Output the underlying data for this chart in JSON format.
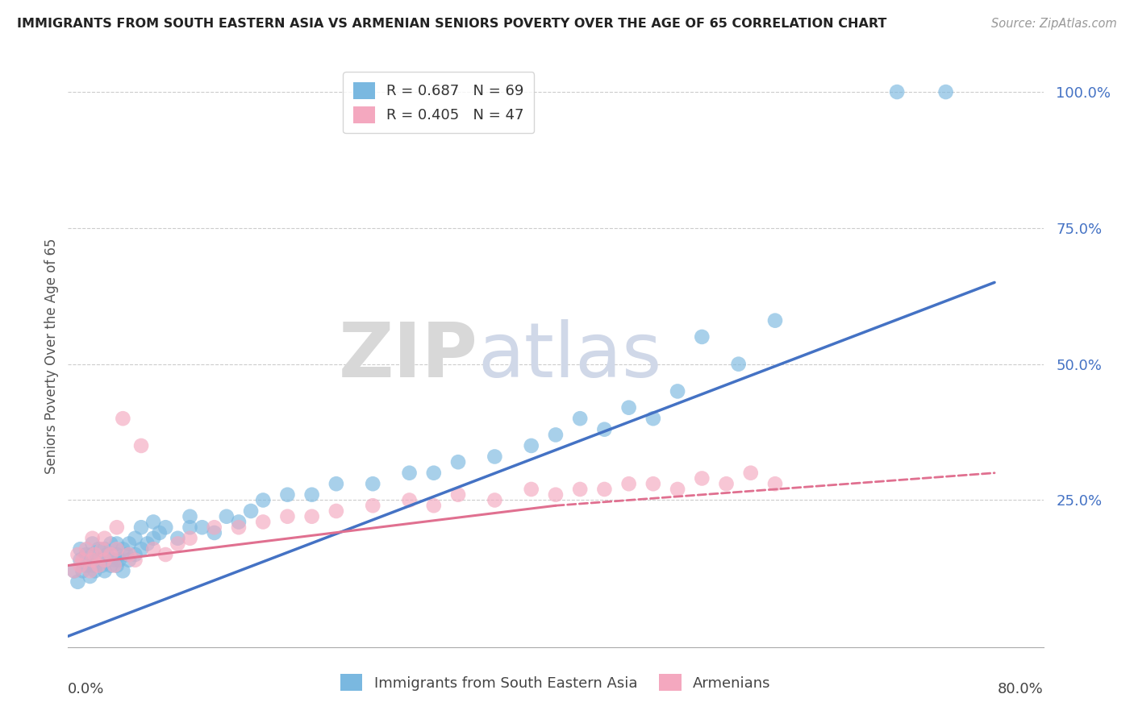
{
  "title": "IMMIGRANTS FROM SOUTH EASTERN ASIA VS ARMENIAN SENIORS POVERTY OVER THE AGE OF 65 CORRELATION CHART",
  "source": "Source: ZipAtlas.com",
  "ylabel": "Seniors Poverty Over the Age of 65",
  "xlim": [
    0.0,
    0.8
  ],
  "ylim": [
    -0.02,
    1.05
  ],
  "ytick_values": [
    0.0,
    0.25,
    0.5,
    0.75,
    1.0
  ],
  "ytick_labels": [
    "",
    "25.0%",
    "50.0%",
    "75.0%",
    "100.0%"
  ],
  "legend1_label": "R = 0.687   N = 69",
  "legend2_label": "R = 0.405   N = 47",
  "legend_bottom_label1": "Immigrants from South Eastern Asia",
  "legend_bottom_label2": "Armenians",
  "blue_color": "#7ab8e0",
  "pink_color": "#f4a8bf",
  "blue_line_color": "#4472c4",
  "pink_line_color": "#e07090",
  "blue_text_color": "#4472c4",
  "watermark_zip": "ZIP",
  "watermark_atlas": "atlas",
  "grid_color": "#cccccc",
  "background_color": "#ffffff",
  "blue_trend": [
    0.0,
    0.0,
    0.76,
    0.65
  ],
  "pink_trend_solid": [
    0.0,
    0.13,
    0.4,
    0.24
  ],
  "pink_trend_dashed": [
    0.4,
    0.24,
    0.76,
    0.3
  ],
  "blue_scatter_x": [
    0.005,
    0.008,
    0.01,
    0.01,
    0.012,
    0.015,
    0.015,
    0.018,
    0.02,
    0.02,
    0.02,
    0.022,
    0.025,
    0.025,
    0.028,
    0.03,
    0.03,
    0.03,
    0.032,
    0.035,
    0.035,
    0.038,
    0.04,
    0.04,
    0.04,
    0.042,
    0.045,
    0.045,
    0.048,
    0.05,
    0.05,
    0.055,
    0.055,
    0.06,
    0.06,
    0.065,
    0.07,
    0.07,
    0.075,
    0.08,
    0.09,
    0.1,
    0.1,
    0.11,
    0.12,
    0.13,
    0.14,
    0.15,
    0.16,
    0.18,
    0.2,
    0.22,
    0.25,
    0.28,
    0.3,
    0.32,
    0.35,
    0.38,
    0.4,
    0.42,
    0.44,
    0.46,
    0.48,
    0.5,
    0.52,
    0.55,
    0.58,
    0.68,
    0.72
  ],
  "blue_scatter_y": [
    0.12,
    0.1,
    0.14,
    0.16,
    0.12,
    0.13,
    0.15,
    0.11,
    0.13,
    0.15,
    0.17,
    0.12,
    0.14,
    0.16,
    0.13,
    0.12,
    0.14,
    0.16,
    0.15,
    0.13,
    0.17,
    0.14,
    0.13,
    0.15,
    0.17,
    0.14,
    0.16,
    0.12,
    0.15,
    0.14,
    0.17,
    0.15,
    0.18,
    0.16,
    0.2,
    0.17,
    0.18,
    0.21,
    0.19,
    0.2,
    0.18,
    0.2,
    0.22,
    0.2,
    0.19,
    0.22,
    0.21,
    0.23,
    0.25,
    0.26,
    0.26,
    0.28,
    0.28,
    0.3,
    0.3,
    0.32,
    0.33,
    0.35,
    0.37,
    0.4,
    0.38,
    0.42,
    0.4,
    0.45,
    0.55,
    0.5,
    0.58,
    1.0,
    1.0
  ],
  "pink_scatter_x": [
    0.005,
    0.008,
    0.01,
    0.012,
    0.015,
    0.018,
    0.02,
    0.02,
    0.022,
    0.025,
    0.028,
    0.03,
    0.03,
    0.035,
    0.038,
    0.04,
    0.04,
    0.045,
    0.05,
    0.055,
    0.06,
    0.07,
    0.08,
    0.09,
    0.1,
    0.12,
    0.14,
    0.16,
    0.18,
    0.2,
    0.22,
    0.25,
    0.28,
    0.3,
    0.32,
    0.35,
    0.38,
    0.4,
    0.42,
    0.44,
    0.46,
    0.48,
    0.5,
    0.52,
    0.54,
    0.56,
    0.58
  ],
  "pink_scatter_y": [
    0.12,
    0.15,
    0.13,
    0.14,
    0.16,
    0.12,
    0.14,
    0.18,
    0.15,
    0.13,
    0.16,
    0.14,
    0.18,
    0.15,
    0.13,
    0.16,
    0.2,
    0.4,
    0.15,
    0.14,
    0.35,
    0.16,
    0.15,
    0.17,
    0.18,
    0.2,
    0.2,
    0.21,
    0.22,
    0.22,
    0.23,
    0.24,
    0.25,
    0.24,
    0.26,
    0.25,
    0.27,
    0.26,
    0.27,
    0.27,
    0.28,
    0.28,
    0.27,
    0.29,
    0.28,
    0.3,
    0.28
  ]
}
